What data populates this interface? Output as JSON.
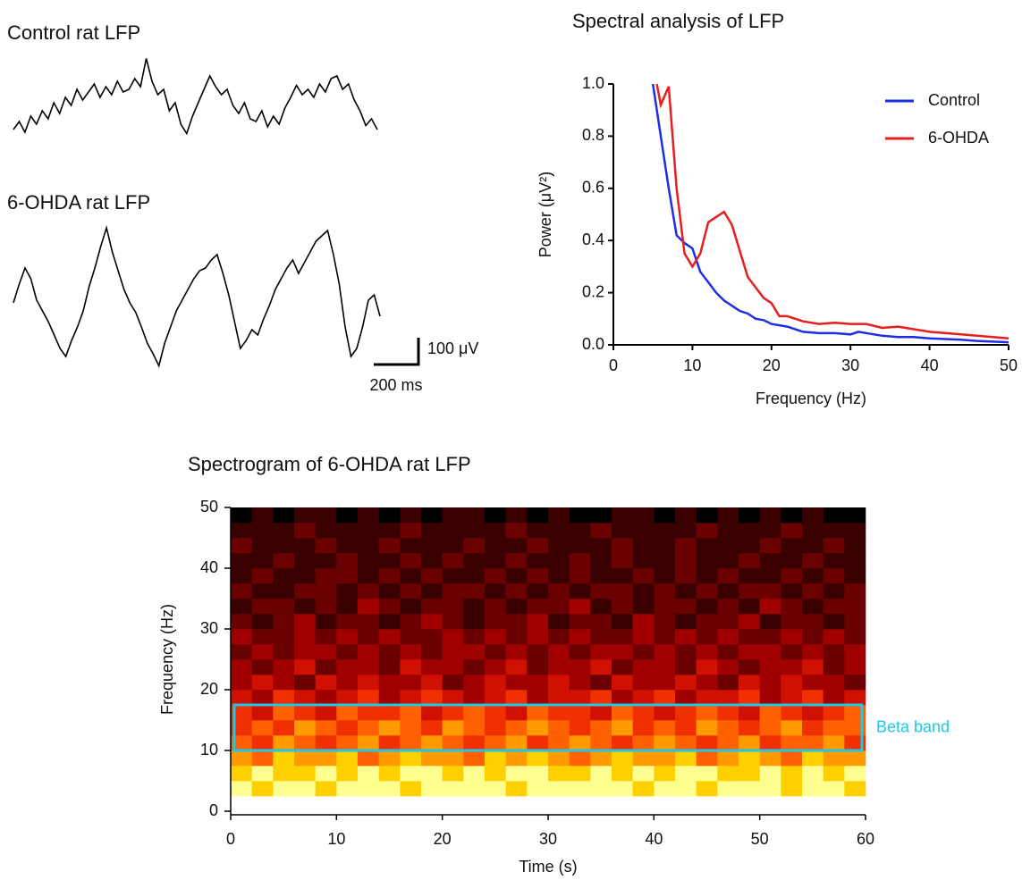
{
  "chart_data": [
    {
      "type": "trace",
      "title": "Control rat LFP",
      "color": "#000000",
      "values": [
        -90,
        -60,
        -100,
        -40,
        -70,
        -20,
        -50,
        10,
        -30,
        30,
        0,
        60,
        20,
        50,
        80,
        30,
        70,
        40,
        90,
        50,
        60,
        100,
        70,
        175,
        90,
        40,
        60,
        -20,
        10,
        -70,
        -105,
        -40,
        10,
        60,
        110,
        70,
        40,
        60,
        0,
        -30,
        10,
        -50,
        -60,
        -20,
        -80,
        -40,
        -70,
        -10,
        30,
        75,
        40,
        60,
        30,
        80,
        50,
        100,
        110,
        60,
        80,
        20,
        -20,
        -75,
        -50,
        -90
      ]
    },
    {
      "type": "trace",
      "title": "6-OHDA rat LFP",
      "color": "#000000",
      "values": [
        -30,
        40,
        100,
        60,
        -20,
        -60,
        -100,
        -150,
        -200,
        -230,
        -170,
        -120,
        -60,
        30,
        100,
        180,
        250,
        160,
        90,
        20,
        -30,
        -65,
        -120,
        -180,
        -220,
        -265,
        -180,
        -120,
        -60,
        -20,
        20,
        60,
        90,
        100,
        130,
        150,
        80,
        0,
        -100,
        -200,
        -170,
        -130,
        -150,
        -90,
        -40,
        20,
        60,
        100,
        130,
        80,
        120,
        160,
        200,
        220,
        240,
        150,
        40,
        -120,
        -230,
        -200,
        -120,
        -20,
        0,
        -80
      ],
      "scale_bar": {
        "y": {
          "value": 100,
          "label": "100 μV"
        },
        "x": {
          "value": 200,
          "label": "200 ms"
        }
      }
    },
    {
      "type": "line",
      "title": "Spectral analysis of LFP",
      "x_label": "Frequency (Hz)",
      "y_label": "Power (μV²)",
      "xlim": [
        0,
        50
      ],
      "ylim": [
        0,
        1
      ],
      "xticks": [
        0,
        10,
        20,
        30,
        40,
        50
      ],
      "yticks": [
        {
          "value": 0,
          "label": "0.0"
        },
        {
          "value": 0.2,
          "label": "0.2"
        },
        {
          "value": 0.4,
          "label": "0.4"
        },
        {
          "value": 0.6,
          "label": "0.6"
        },
        {
          "value": 0.8,
          "label": "0.8"
        },
        {
          "value": 1,
          "label": "1.0"
        }
      ],
      "legend": "upper right",
      "series": [
        {
          "name": "Control",
          "color": "#1f2de6",
          "x": [
            5,
            6,
            7,
            8,
            9,
            10,
            11,
            12,
            13,
            14,
            15,
            16,
            17,
            18,
            19,
            20,
            22,
            24,
            26,
            28,
            30,
            31,
            34,
            36,
            38,
            40,
            44,
            46,
            50
          ],
          "values": [
            1.0,
            0.8,
            0.6,
            0.42,
            0.39,
            0.37,
            0.28,
            0.24,
            0.2,
            0.17,
            0.15,
            0.13,
            0.12,
            0.1,
            0.095,
            0.08,
            0.07,
            0.05,
            0.045,
            0.045,
            0.04,
            0.05,
            0.035,
            0.03,
            0.03,
            0.025,
            0.02,
            0.015,
            0.01
          ]
        },
        {
          "name": "6-OHDA",
          "color": "#e61e1e",
          "x": [
            5.5,
            6,
            7,
            8,
            9,
            10,
            11,
            12,
            13,
            14,
            15,
            16,
            17,
            18,
            19,
            20,
            21,
            22,
            24,
            26,
            28,
            30,
            32,
            34,
            36,
            38,
            40,
            44,
            48,
            50
          ],
          "values": [
            1.0,
            0.92,
            0.99,
            0.6,
            0.35,
            0.3,
            0.35,
            0.47,
            0.49,
            0.51,
            0.46,
            0.36,
            0.26,
            0.22,
            0.18,
            0.16,
            0.11,
            0.11,
            0.09,
            0.08,
            0.085,
            0.08,
            0.08,
            0.065,
            0.07,
            0.06,
            0.05,
            0.04,
            0.03,
            0.025
          ]
        }
      ]
    },
    {
      "type": "heatmap",
      "title": "Spectrogram of 6-OHDA rat LFP",
      "x_label": "Time (s)",
      "y_label": "Frequency (Hz)",
      "xlim": [
        0,
        60
      ],
      "ylim": [
        0,
        50
      ],
      "xticks": [
        0,
        10,
        20,
        30,
        40,
        50,
        60
      ],
      "yticks": [
        0,
        10,
        20,
        30,
        40,
        50
      ],
      "colormap": [
        "#000000",
        "#3a0000",
        "#6a0000",
        "#a00000",
        "#d01000",
        "#f03000",
        "#ff6000",
        "#ff9a00",
        "#ffd000",
        "#ffff90"
      ],
      "xbins": [
        0,
        2,
        4,
        6,
        8,
        10,
        12,
        14,
        16,
        18,
        20,
        22,
        24,
        26,
        28,
        30,
        32,
        34,
        36,
        38,
        40,
        42,
        44,
        46,
        48,
        50,
        52,
        54,
        56,
        58,
        60
      ],
      "ybins": [
        2.5,
        5,
        7.5,
        10,
        12.5,
        15,
        17.5,
        20,
        22.5,
        25,
        27.5,
        30,
        32.5,
        35,
        37.5,
        40,
        42.5,
        45,
        47.5,
        50
      ],
      "z": [
        [
          9,
          8,
          9,
          9,
          8,
          9,
          9,
          9,
          8,
          9,
          9,
          9,
          9,
          8,
          9,
          9,
          9,
          9,
          9,
          8,
          9,
          9,
          8,
          9,
          9,
          9,
          8,
          9,
          9,
          8
        ],
        [
          8,
          9,
          8,
          8,
          9,
          8,
          9,
          8,
          9,
          9,
          8,
          9,
          8,
          9,
          9,
          8,
          8,
          9,
          8,
          9,
          8,
          9,
          9,
          8,
          8,
          9,
          8,
          9,
          8,
          9
        ],
        [
          7,
          6,
          8,
          7,
          7,
          8,
          6,
          7,
          8,
          7,
          7,
          6,
          8,
          7,
          8,
          7,
          6,
          7,
          8,
          7,
          7,
          8,
          6,
          7,
          8,
          7,
          6,
          8,
          7,
          7
        ],
        [
          6,
          5,
          7,
          6,
          5,
          6,
          7,
          5,
          6,
          7,
          6,
          5,
          6,
          7,
          5,
          6,
          7,
          6,
          5,
          6,
          7,
          6,
          5,
          6,
          7,
          5,
          6,
          6,
          7,
          5
        ],
        [
          5,
          6,
          5,
          7,
          6,
          5,
          6,
          7,
          6,
          5,
          7,
          6,
          5,
          6,
          7,
          6,
          5,
          6,
          7,
          5,
          6,
          5,
          7,
          6,
          5,
          6,
          7,
          5,
          6,
          6
        ],
        [
          5,
          4,
          6,
          5,
          4,
          6,
          5,
          5,
          6,
          4,
          5,
          6,
          5,
          4,
          6,
          5,
          5,
          4,
          6,
          5,
          4,
          5,
          6,
          5,
          4,
          6,
          5,
          4,
          5,
          6
        ],
        [
          4,
          3,
          5,
          4,
          3,
          4,
          5,
          3,
          4,
          5,
          4,
          3,
          4,
          5,
          3,
          4,
          4,
          5,
          3,
          4,
          5,
          3,
          4,
          4,
          5,
          3,
          4,
          5,
          3,
          4
        ],
        [
          3,
          4,
          3,
          2,
          4,
          3,
          4,
          3,
          3,
          4,
          2,
          3,
          4,
          3,
          3,
          4,
          3,
          2,
          4,
          3,
          3,
          4,
          3,
          2,
          4,
          3,
          4,
          3,
          3,
          2
        ],
        [
          3,
          2,
          3,
          4,
          2,
          3,
          3,
          2,
          4,
          3,
          3,
          2,
          3,
          4,
          2,
          3,
          3,
          4,
          2,
          3,
          3,
          2,
          4,
          3,
          2,
          3,
          3,
          4,
          2,
          3
        ],
        [
          2,
          3,
          2,
          3,
          3,
          2,
          3,
          2,
          3,
          2,
          3,
          3,
          2,
          3,
          2,
          3,
          2,
          3,
          3,
          2,
          3,
          2,
          3,
          2,
          3,
          3,
          2,
          3,
          2,
          3
        ],
        [
          3,
          2,
          2,
          3,
          2,
          3,
          2,
          3,
          2,
          2,
          3,
          2,
          3,
          2,
          3,
          2,
          3,
          2,
          2,
          3,
          2,
          3,
          2,
          3,
          2,
          2,
          3,
          2,
          3,
          2
        ],
        [
          2,
          1,
          2,
          3,
          1,
          2,
          2,
          1,
          2,
          3,
          2,
          1,
          2,
          2,
          3,
          1,
          2,
          2,
          1,
          3,
          2,
          1,
          2,
          2,
          3,
          1,
          2,
          2,
          1,
          2
        ],
        [
          1,
          2,
          2,
          1,
          2,
          1,
          3,
          2,
          1,
          2,
          2,
          1,
          2,
          1,
          2,
          2,
          3,
          1,
          2,
          1,
          2,
          2,
          1,
          2,
          1,
          3,
          2,
          1,
          2,
          2
        ],
        [
          2,
          1,
          1,
          2,
          2,
          1,
          2,
          1,
          2,
          1,
          2,
          2,
          1,
          2,
          1,
          2,
          1,
          2,
          2,
          1,
          2,
          1,
          2,
          1,
          2,
          2,
          1,
          2,
          1,
          2
        ],
        [
          1,
          2,
          1,
          1,
          2,
          2,
          1,
          2,
          1,
          2,
          1,
          1,
          2,
          1,
          2,
          1,
          2,
          1,
          1,
          2,
          1,
          2,
          1,
          2,
          1,
          1,
          2,
          1,
          2,
          1
        ],
        [
          1,
          1,
          2,
          1,
          1,
          2,
          1,
          1,
          2,
          1,
          2,
          1,
          1,
          2,
          1,
          1,
          2,
          1,
          2,
          1,
          1,
          2,
          1,
          1,
          2,
          1,
          1,
          2,
          1,
          1
        ],
        [
          2,
          1,
          1,
          1,
          2,
          1,
          1,
          2,
          1,
          1,
          1,
          2,
          1,
          1,
          2,
          1,
          1,
          1,
          2,
          1,
          1,
          2,
          1,
          1,
          1,
          2,
          1,
          1,
          2,
          1
        ],
        [
          1,
          1,
          1,
          2,
          1,
          1,
          1,
          1,
          2,
          1,
          1,
          1,
          1,
          2,
          1,
          1,
          1,
          2,
          1,
          1,
          1,
          1,
          2,
          1,
          1,
          1,
          2,
          1,
          1,
          1
        ],
        [
          0,
          1,
          0,
          1,
          1,
          0,
          1,
          0,
          1,
          0,
          1,
          1,
          0,
          1,
          0,
          1,
          0,
          0,
          1,
          1,
          0,
          1,
          0,
          1,
          0,
          1,
          0,
          1,
          0,
          0
        ]
      ],
      "annotation": {
        "text": "Beta band",
        "ylim": [
          10,
          17.5
        ],
        "color": "#1ec8e6"
      }
    }
  ]
}
